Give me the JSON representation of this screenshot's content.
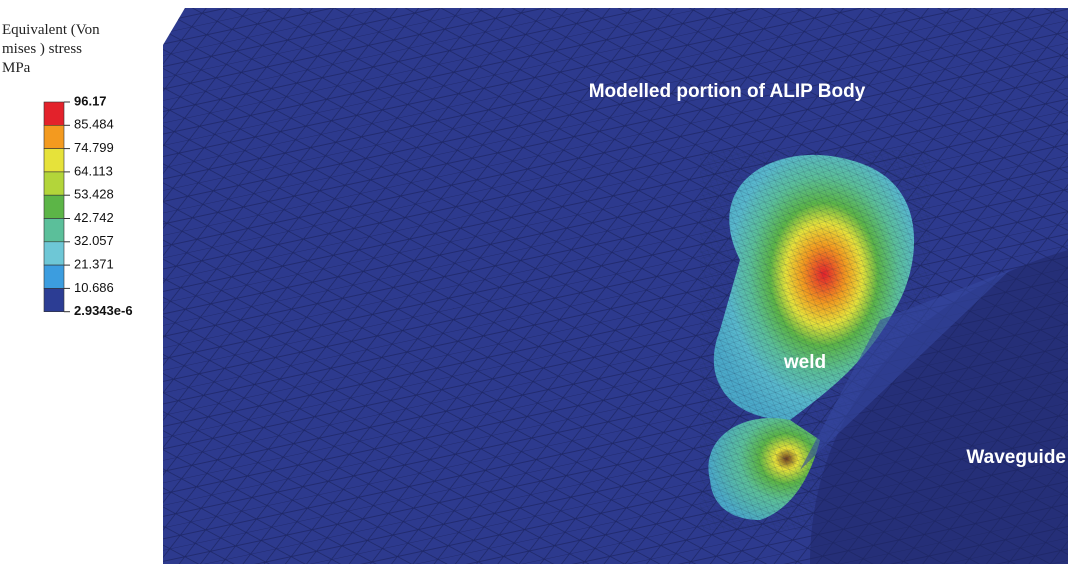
{
  "legend": {
    "title_lines": [
      "Equivalent (Von",
      "mises ) stress",
      "MPa"
    ],
    "labels": [
      "96.17",
      "85.484",
      "74.799",
      "64.113",
      "53.428",
      "42.742",
      "32.057",
      "21.371",
      "10.686",
      "2.9343e-6"
    ],
    "colors": [
      "#e3222b",
      "#f39a1f",
      "#e6e23a",
      "#b3d53a",
      "#5cb547",
      "#5bbf9a",
      "#6ec7d6",
      "#3c9ddf",
      "#2c3d94"
    ]
  },
  "annotations": {
    "body": "Modelled portion of ALIP Body",
    "weld": "weld",
    "waveguide": "Waveguide"
  }
}
